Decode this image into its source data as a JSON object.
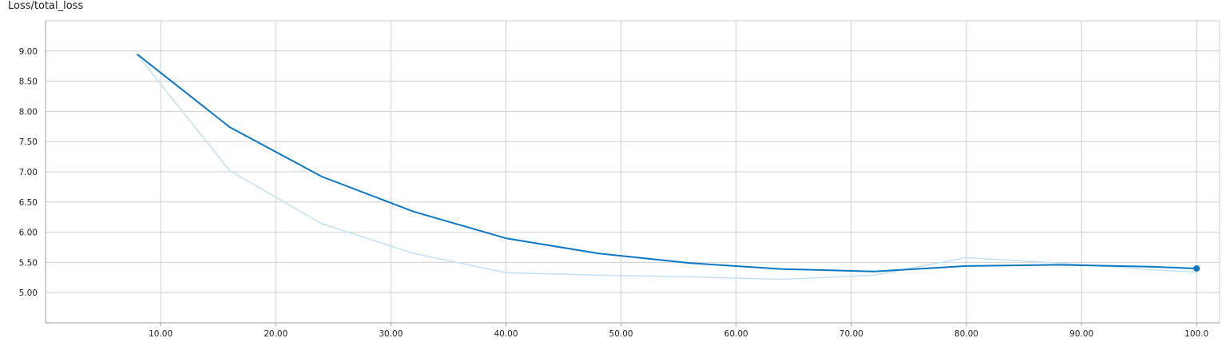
{
  "chart_title": "Loss/total_loss",
  "colors": {
    "smoothed": "#0b77c2",
    "raw": "#c6e1f2",
    "grid": "#cfcfcf"
  },
  "chart_data": {
    "type": "line",
    "title": "Loss/total_loss",
    "xlabel": "",
    "ylabel": "",
    "xlim": [
      0,
      102
    ],
    "ylim": [
      4.5,
      9.5
    ],
    "x_ticks": [
      10,
      20,
      30,
      40,
      50,
      60,
      70,
      80,
      90,
      100
    ],
    "x_tick_labels": [
      "10.00",
      "20.00",
      "30.00",
      "40.00",
      "50.00",
      "60.00",
      "70.00",
      "80.00",
      "90.00",
      "100.0"
    ],
    "y_ticks": [
      5.0,
      5.5,
      6.0,
      6.5,
      7.0,
      7.5,
      8.0,
      8.5,
      9.0
    ],
    "y_tick_labels": [
      "5.00",
      "5.50",
      "6.00",
      "6.50",
      "7.00",
      "7.50",
      "8.00",
      "8.50",
      "9.00"
    ],
    "grid": true,
    "series": [
      {
        "role": "raw",
        "x": [
          8,
          16,
          24,
          32,
          40,
          48,
          56,
          64,
          72,
          80,
          88,
          96,
          100
        ],
        "y": [
          8.93,
          7.02,
          6.14,
          5.65,
          5.33,
          5.29,
          5.26,
          5.22,
          5.29,
          5.58,
          5.49,
          5.38,
          5.34
        ]
      },
      {
        "role": "smoothed",
        "x": [
          8,
          16,
          24,
          32,
          40,
          48,
          56,
          64,
          72,
          80,
          88,
          96,
          100
        ],
        "y": [
          8.94,
          7.74,
          6.92,
          6.34,
          5.9,
          5.65,
          5.49,
          5.39,
          5.35,
          5.44,
          5.46,
          5.43,
          5.4
        ]
      }
    ]
  }
}
